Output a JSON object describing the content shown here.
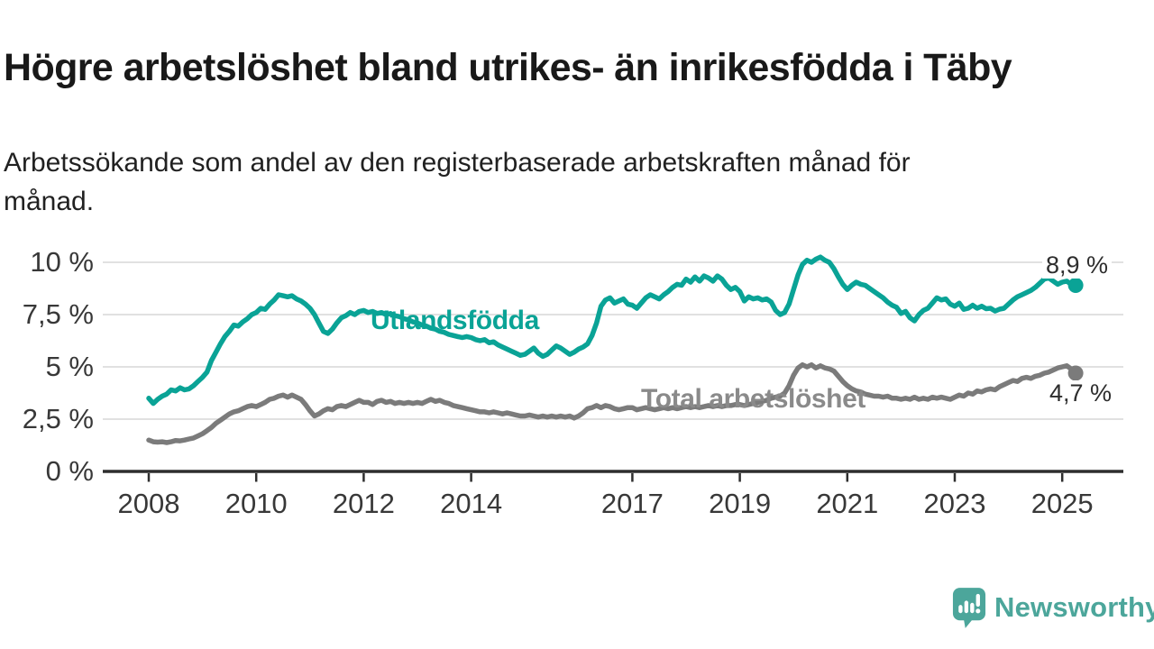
{
  "chart_data": {
    "type": "line",
    "title": "Högre arbetslöshet bland utrikes- än inrikesfödda i Täby",
    "subtitle_lines": [
      "Arbetssökande som andel av den registerbaserade arbetskraften månad för",
      "månad."
    ],
    "x_unit": "month",
    "x_start": "2008-01",
    "x_end": "2025-04",
    "ylim": [
      0,
      10.6
    ],
    "grid": true,
    "y_ticks": [
      {
        "label": "10 %",
        "value": 10
      },
      {
        "label": "7,5 %",
        "value": 7.5
      },
      {
        "label": "5 %",
        "value": 5
      },
      {
        "label": "2,5 %",
        "value": 2.5
      },
      {
        "label": "0 %",
        "value": 0
      }
    ],
    "x_ticks": [
      {
        "label": "2008",
        "year": 2008
      },
      {
        "label": "2010",
        "year": 2010
      },
      {
        "label": "2012",
        "year": 2012
      },
      {
        "label": "2014",
        "year": 2014
      },
      {
        "label": "2017",
        "year": 2017
      },
      {
        "label": "2019",
        "year": 2019
      },
      {
        "label": "2021",
        "year": 2021
      },
      {
        "label": "2023",
        "year": 2023
      },
      {
        "label": "2025",
        "year": 2025
      }
    ],
    "series": [
      {
        "name": "Utlandsfödda",
        "color": "#0AA396",
        "end_label": "8,9 %",
        "end_value": 8.9,
        "values": [
          3.5,
          3.25,
          3.45,
          3.6,
          3.7,
          3.9,
          3.85,
          4.0,
          3.9,
          3.95,
          4.1,
          4.3,
          4.5,
          4.75,
          5.3,
          5.7,
          6.1,
          6.45,
          6.7,
          7.0,
          6.95,
          7.15,
          7.3,
          7.5,
          7.6,
          7.8,
          7.75,
          8.0,
          8.2,
          8.45,
          8.4,
          8.35,
          8.4,
          8.25,
          8.15,
          8.0,
          7.8,
          7.5,
          7.1,
          6.7,
          6.6,
          6.8,
          7.1,
          7.35,
          7.45,
          7.6,
          7.5,
          7.65,
          7.7,
          7.6,
          7.65,
          7.55,
          7.6,
          7.5,
          7.55,
          7.45,
          7.4,
          7.3,
          7.25,
          7.15,
          7.1,
          7.0,
          6.95,
          6.85,
          6.8,
          6.7,
          6.65,
          6.55,
          6.5,
          6.45,
          6.4,
          6.45,
          6.4,
          6.3,
          6.25,
          6.3,
          6.15,
          6.2,
          6.05,
          5.95,
          5.85,
          5.75,
          5.65,
          5.55,
          5.6,
          5.75,
          5.9,
          5.65,
          5.5,
          5.6,
          5.8,
          6.0,
          5.9,
          5.75,
          5.6,
          5.7,
          5.85,
          5.95,
          6.1,
          6.5,
          7.1,
          7.9,
          8.2,
          8.3,
          8.05,
          8.15,
          8.25,
          8.0,
          7.95,
          7.8,
          8.05,
          8.3,
          8.45,
          8.35,
          8.25,
          8.45,
          8.6,
          8.8,
          8.95,
          8.9,
          9.2,
          9.05,
          9.3,
          9.1,
          9.35,
          9.25,
          9.1,
          9.35,
          9.2,
          8.9,
          8.7,
          8.8,
          8.6,
          8.15,
          8.35,
          8.25,
          8.3,
          8.2,
          8.25,
          8.1,
          7.7,
          7.5,
          7.6,
          8.0,
          8.7,
          9.4,
          9.9,
          10.1,
          10.0,
          10.15,
          10.25,
          10.1,
          10.0,
          9.7,
          9.3,
          8.95,
          8.7,
          8.9,
          9.05,
          8.95,
          8.9,
          8.75,
          8.6,
          8.45,
          8.3,
          8.1,
          7.95,
          7.85,
          7.55,
          7.65,
          7.35,
          7.2,
          7.5,
          7.7,
          7.8,
          8.05,
          8.3,
          8.2,
          8.25,
          8.0,
          7.9,
          8.05,
          7.75,
          7.8,
          7.95,
          7.8,
          7.9,
          7.78,
          7.8,
          7.67,
          7.76,
          7.8,
          8.0,
          8.2,
          8.35,
          8.45,
          8.55,
          8.65,
          8.8,
          9.0,
          9.2,
          9.25,
          9.1,
          8.95,
          9.05,
          9.1,
          8.95,
          8.9
        ]
      },
      {
        "name": "Total arbetslöshet",
        "color": "#7b7b7b",
        "end_label": "4,7 %",
        "end_value": 4.7,
        "values": [
          1.5,
          1.42,
          1.4,
          1.42,
          1.38,
          1.42,
          1.48,
          1.46,
          1.5,
          1.55,
          1.6,
          1.7,
          1.8,
          1.95,
          2.1,
          2.3,
          2.45,
          2.6,
          2.75,
          2.85,
          2.9,
          3.0,
          3.1,
          3.15,
          3.1,
          3.2,
          3.3,
          3.45,
          3.5,
          3.6,
          3.65,
          3.55,
          3.65,
          3.55,
          3.45,
          3.2,
          2.9,
          2.65,
          2.75,
          2.9,
          3.0,
          2.95,
          3.1,
          3.15,
          3.1,
          3.2,
          3.3,
          3.4,
          3.3,
          3.3,
          3.2,
          3.35,
          3.4,
          3.3,
          3.35,
          3.25,
          3.3,
          3.25,
          3.3,
          3.25,
          3.3,
          3.25,
          3.35,
          3.45,
          3.35,
          3.4,
          3.3,
          3.25,
          3.15,
          3.1,
          3.05,
          3.0,
          2.95,
          2.9,
          2.85,
          2.85,
          2.8,
          2.85,
          2.8,
          2.75,
          2.8,
          2.75,
          2.7,
          2.65,
          2.65,
          2.7,
          2.65,
          2.6,
          2.65,
          2.6,
          2.65,
          2.6,
          2.65,
          2.6,
          2.65,
          2.55,
          2.65,
          2.8,
          3.0,
          3.05,
          3.15,
          3.05,
          3.15,
          3.1,
          3.0,
          2.95,
          3.0,
          3.05,
          3.05,
          2.95,
          3.0,
          3.05,
          3.0,
          2.95,
          3.0,
          3.05,
          3.0,
          3.05,
          3.0,
          3.05,
          3.1,
          3.05,
          3.1,
          3.05,
          3.1,
          3.15,
          3.1,
          3.15,
          3.1,
          3.15,
          3.15,
          3.2,
          3.2,
          3.15,
          3.2,
          3.25,
          3.3,
          3.35,
          3.4,
          3.5,
          3.55,
          3.6,
          3.75,
          4.1,
          4.6,
          4.95,
          5.1,
          5.0,
          5.1,
          4.95,
          5.05,
          4.95,
          4.9,
          4.8,
          4.55,
          4.3,
          4.1,
          3.95,
          3.85,
          3.8,
          3.7,
          3.65,
          3.6,
          3.6,
          3.55,
          3.6,
          3.5,
          3.5,
          3.45,
          3.5,
          3.45,
          3.55,
          3.45,
          3.5,
          3.45,
          3.55,
          3.5,
          3.55,
          3.5,
          3.45,
          3.55,
          3.65,
          3.6,
          3.75,
          3.7,
          3.85,
          3.8,
          3.9,
          3.95,
          3.9,
          4.05,
          4.15,
          4.25,
          4.35,
          4.3,
          4.45,
          4.5,
          4.45,
          4.55,
          4.6,
          4.7,
          4.75,
          4.85,
          4.95,
          5.0,
          5.05,
          4.9,
          4.7
        ]
      }
    ],
    "colors": {
      "grid": "#d7d7d7",
      "axis": "#2e2e2e",
      "axis_text": "#383838"
    }
  },
  "logo": {
    "text": "Newsworthy",
    "color": "#4CA69B"
  }
}
